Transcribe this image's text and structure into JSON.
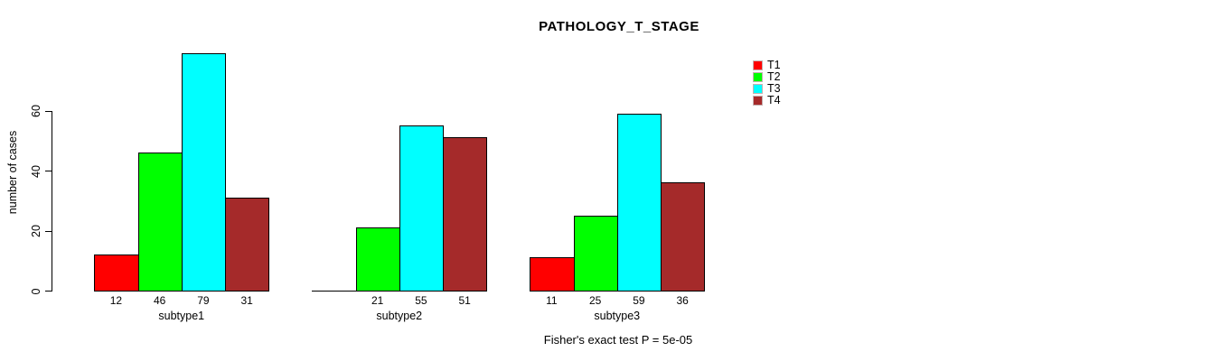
{
  "figure": {
    "title": "PATHOLOGY_T_STAGE",
    "footer": "Fisher's exact test P = 5e-05"
  },
  "chart_data": {
    "type": "bar",
    "title": "PATHOLOGY_T_STAGE",
    "xlabel": "",
    "ylabel": "number of cases",
    "categories": [
      "subtype1",
      "subtype2",
      "subtype3"
    ],
    "series": [
      {
        "name": "T1",
        "color": "#ff0000",
        "values": [
          12,
          0,
          11
        ]
      },
      {
        "name": "T2",
        "color": "#00ff00",
        "values": [
          46,
          21,
          25
        ]
      },
      {
        "name": "T3",
        "color": "#00ffff",
        "values": [
          79,
          55,
          59
        ]
      },
      {
        "name": "T4",
        "color": "#a52a2a",
        "values": [
          31,
          51,
          36
        ]
      }
    ],
    "yticks": [
      0,
      20,
      40,
      60
    ],
    "ylim": [
      0,
      80
    ],
    "grid": false,
    "grouped": true,
    "bar_value_labels_shown": true,
    "zero_value_labels_hidden": true,
    "legend_position": "top-right",
    "legend_labels": [
      "T1",
      "T2",
      "T3",
      "T4"
    ],
    "annotation": "Fisher's exact test P = 5e-05"
  }
}
